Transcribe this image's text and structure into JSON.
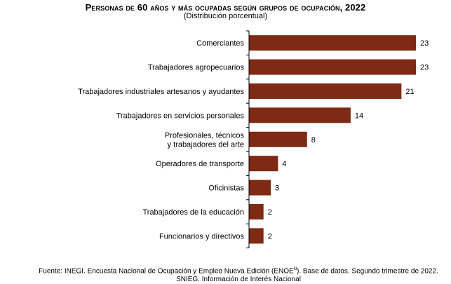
{
  "chart_data": {
    "type": "bar",
    "orientation": "horizontal",
    "title": "Personas de 60 años y más ocupadas según grupos de ocupación, 2022",
    "subtitle": "(Distribución porcentual)",
    "categories": [
      [
        "Comerciantes"
      ],
      [
        "Trabajadores agropecuarios"
      ],
      [
        "Trabajadores industriales artesanos y ayudantes"
      ],
      [
        "Trabajadores en servicios personales"
      ],
      [
        "Profesionales, técnicos",
        "y trabajadores del arte"
      ],
      [
        "Operadores de transporte"
      ],
      [
        "Oficinistas"
      ],
      [
        "Trabajadores de la educación"
      ],
      [
        "Funcionarios y directivos"
      ]
    ],
    "values": [
      23,
      23,
      21,
      14,
      8,
      4,
      3,
      2,
      2
    ],
    "xlim": [
      0,
      25
    ],
    "bar_color": "#7f2a14",
    "grid": false,
    "legend": "none"
  },
  "source": {
    "text_before": "Fuente: INEGI. Encuesta Nacional de Ocupación y Empleo Nueva Edición (ENOE",
    "sup": "N",
    "text_after": "). Base de datos. Segundo trimestre de 2022. SNIEG. Información de Interés Nacional"
  }
}
